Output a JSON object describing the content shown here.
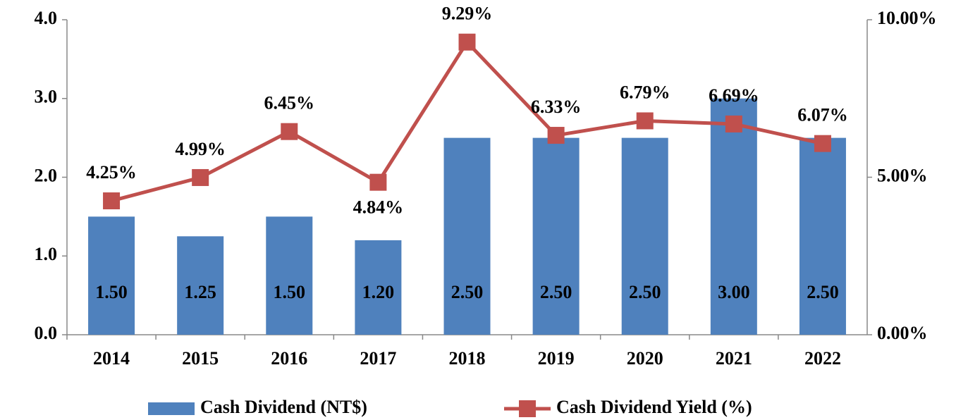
{
  "chart_data": {
    "type": "bar",
    "categories": [
      "2014",
      "2015",
      "2016",
      "2017",
      "2018",
      "2019",
      "2020",
      "2021",
      "2022"
    ],
    "series": [
      {
        "name": "Cash Dividend (NT$)",
        "type": "bar",
        "color": "#4f81bd",
        "values": [
          1.5,
          1.25,
          1.5,
          1.2,
          2.5,
          2.5,
          2.5,
          3.0,
          2.5
        ],
        "value_labels": [
          "1.50",
          "1.25",
          "1.50",
          "1.20",
          "2.50",
          "2.50",
          "2.50",
          "3.00",
          "2.50"
        ]
      },
      {
        "name": "Cash Dividend Yield (%)",
        "type": "line",
        "axis": "y2",
        "color": "#c0504d",
        "values": [
          4.25,
          4.99,
          6.45,
          4.84,
          9.29,
          6.33,
          6.79,
          6.69,
          6.07
        ],
        "value_labels": [
          "4.25%",
          "4.99%",
          "6.45%",
          "4.84%",
          "9.29%",
          "6.33%",
          "6.79%",
          "6.69%",
          "6.07%"
        ]
      }
    ],
    "ylim": [
      0,
      4
    ],
    "yticks": [
      {
        "value": 0,
        "label": "0.0"
      },
      {
        "value": 1,
        "label": "1.0"
      },
      {
        "value": 2,
        "label": "2.0"
      },
      {
        "value": 3,
        "label": "3.0"
      },
      {
        "value": 4,
        "label": "4.0"
      }
    ],
    "y2lim": [
      0,
      10
    ],
    "y2ticks": [
      {
        "value": 0,
        "label": "0.00%"
      },
      {
        "value": 5,
        "label": "5.00%"
      },
      {
        "value": 10,
        "label": "10.00%"
      }
    ],
    "grid": false,
    "legend": "bottom"
  }
}
